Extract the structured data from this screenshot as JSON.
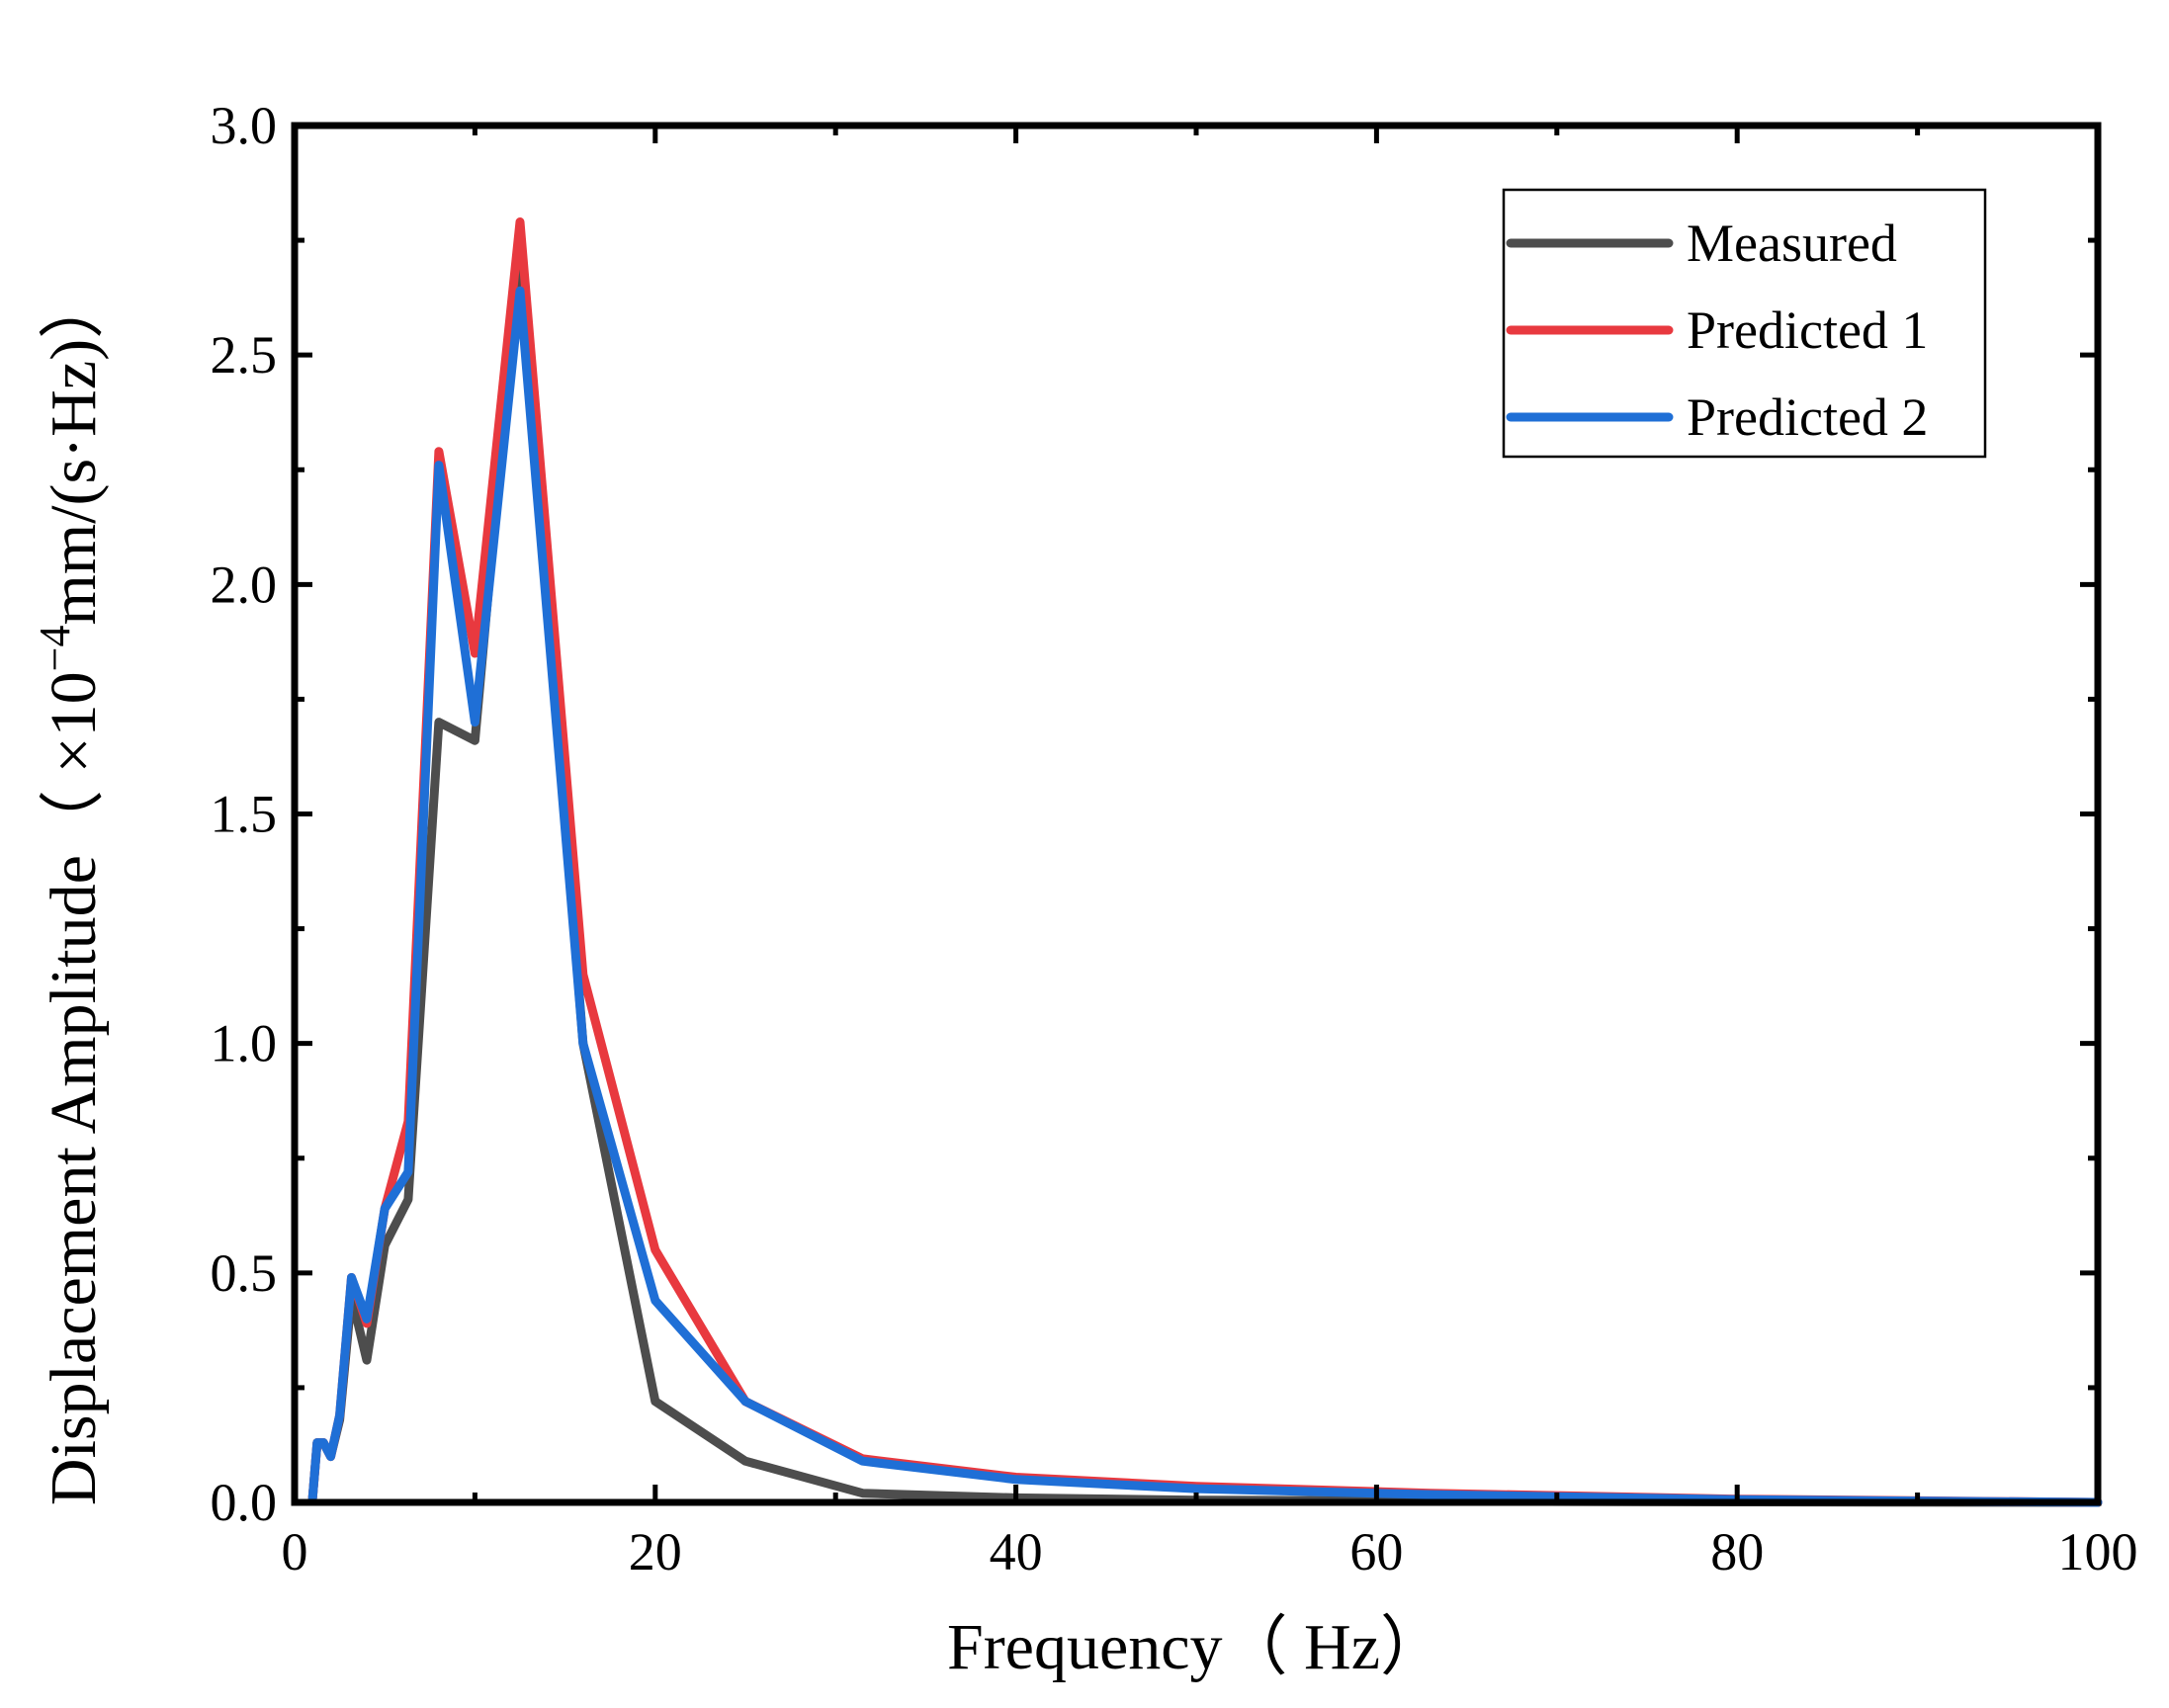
{
  "chart_data": {
    "type": "line",
    "title": "",
    "xlabel": "Frequency（ Hz）",
    "ylabel_main": "Displacement Amplitude（ ×10",
    "ylabel_exponent": "−4",
    "ylabel_tail": "mm/(s·Hz)）",
    "xlim": [
      0,
      100
    ],
    "ylim": [
      0,
      3.0
    ],
    "x_ticks": [
      0,
      20,
      40,
      60,
      80,
      100
    ],
    "x_tick_labels": [
      "0",
      "20",
      "40",
      "60",
      "80",
      "100"
    ],
    "y_ticks": [
      0,
      0.5,
      1.0,
      1.5,
      2.0,
      2.5,
      3.0
    ],
    "y_tick_labels": [
      "0.0",
      "0.5",
      "1.0",
      "1.5",
      "2.0",
      "2.5",
      "3.0"
    ],
    "grid": false,
    "legend_position": "top-right",
    "x": [
      1,
      1.25,
      1.6,
      2,
      2.5,
      3.15,
      4,
      5,
      6.3,
      8,
      10,
      12.5,
      16,
      20,
      25,
      31.5,
      40,
      50,
      63,
      80,
      100
    ],
    "series": [
      {
        "name": "Measured",
        "color": "#4d4d4d",
        "values": [
          0.01,
          0.13,
          0.13,
          0.1,
          0.18,
          0.45,
          0.31,
          0.56,
          0.66,
          1.7,
          1.66,
          2.75,
          1.0,
          0.22,
          0.09,
          0.02,
          0.01,
          0.005,
          0.003,
          0.001,
          0.0
        ]
      },
      {
        "name": "Predicted 1",
        "color": "#e8393f",
        "values": [
          0.01,
          0.13,
          0.13,
          0.1,
          0.19,
          0.49,
          0.39,
          0.64,
          0.83,
          2.29,
          1.85,
          2.79,
          1.15,
          0.55,
          0.22,
          0.095,
          0.055,
          0.035,
          0.02,
          0.007,
          0.0
        ]
      },
      {
        "name": "Predicted 2",
        "color": "#1f6fd6",
        "values": [
          0.01,
          0.13,
          0.13,
          0.1,
          0.19,
          0.49,
          0.4,
          0.64,
          0.72,
          2.26,
          1.7,
          2.64,
          1.0,
          0.44,
          0.22,
          0.09,
          0.05,
          0.03,
          0.017,
          0.006,
          0.0
        ]
      }
    ]
  }
}
